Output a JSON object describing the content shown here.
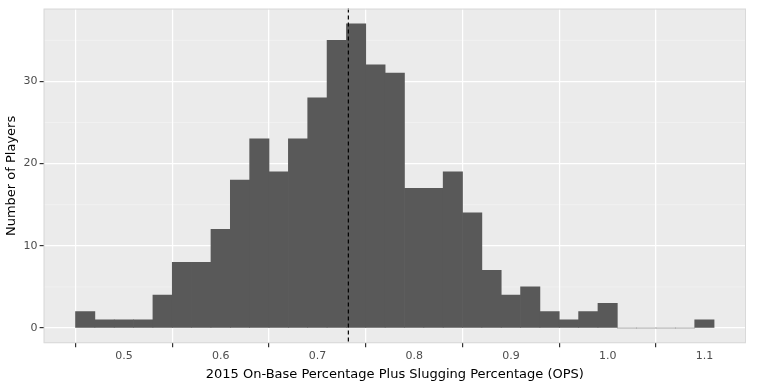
{
  "chart_data": {
    "type": "histogram",
    "x_label": "2015 On-Base Percentage Plus Slugging Percentage (OPS)",
    "y_label": "Number of Players",
    "bins": [
      0.45,
      0.47,
      0.49,
      0.51,
      0.53,
      0.55,
      0.57,
      0.59,
      0.61,
      0.63,
      0.65,
      0.67,
      0.69,
      0.71,
      0.73,
      0.75,
      0.77,
      0.79,
      0.81,
      0.83,
      0.85,
      0.87,
      0.89,
      0.91,
      0.93,
      0.95,
      0.97,
      0.99,
      1.01,
      1.03,
      1.05,
      1.07,
      1.09,
      1.11
    ],
    "values": [
      2,
      1,
      1,
      1,
      4,
      8,
      8,
      12,
      18,
      23,
      19,
      23,
      28,
      35,
      37,
      32,
      31,
      17,
      17,
      19,
      14,
      7,
      4,
      5,
      2,
      1,
      2,
      3,
      0,
      0,
      0,
      0,
      1
    ],
    "color": "#595959",
    "vline": 0.732,
    "xlim": [
      0.417,
      1.143
    ],
    "xticks": [
      0.5,
      0.6,
      0.7,
      0.8,
      0.9,
      {
        "value": 1.0,
        "label": "1.0"
      },
      1.1
    ],
    "ylim": [
      -1.85,
      38.85
    ],
    "yticks": [
      0,
      10,
      20,
      30
    ],
    "grid": true
  }
}
